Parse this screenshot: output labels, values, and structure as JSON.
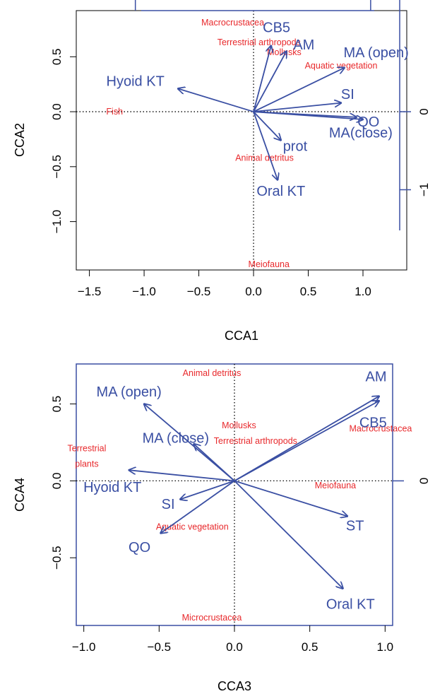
{
  "colors": {
    "arrow": "#3a4fa3",
    "site": "#e8282b",
    "axis": "#000000",
    "frame_secondary": "#3a4fa3"
  },
  "chart_data": [
    {
      "type": "scatter",
      "subtype": "cca-biplot",
      "xlabel": "CCA1",
      "ylabel": "CCA2",
      "xlim": [
        -1.62,
        1.4
      ],
      "ylim": [
        -1.44,
        0.92
      ],
      "x_ticks": [
        -1.5,
        -1.0,
        -0.5,
        0.0,
        0.5,
        1.0
      ],
      "x_tick_labels": [
        "−1.5",
        "−1.0",
        "−0.5",
        "0.0",
        "0.5",
        "1.0"
      ],
      "y_ticks": [
        -1.0,
        -0.5,
        0.0,
        0.5
      ],
      "y_tick_labels": [
        "−1.0",
        "−0.5",
        "0.0",
        "0.5"
      ],
      "right_ticks": [
        0,
        -1
      ],
      "right_tick_labels": [
        "0",
        "−1"
      ],
      "right_tick_scale": 0.71,
      "top_ticks": [
        -1.08,
        1.07
      ],
      "reference_lines": true,
      "vectors": [
        {
          "name": "CB5",
          "x": 0.16,
          "y": 0.6,
          "label": "CB5",
          "lx": 0.21,
          "ly": 0.77,
          "anchor": "middle"
        },
        {
          "name": "AM",
          "x": 0.3,
          "y": 0.55,
          "label": "AM",
          "lx": 0.46,
          "ly": 0.61,
          "anchor": "middle"
        },
        {
          "name": "MA (open)",
          "x": 0.83,
          "y": 0.4,
          "label": "MA (open)",
          "lx": 1.12,
          "ly": 0.54,
          "anchor": "middle"
        },
        {
          "name": "SI",
          "x": 0.8,
          "y": 0.08,
          "label": "SI",
          "lx": 0.86,
          "ly": 0.16,
          "anchor": "middle"
        },
        {
          "name": "QO",
          "x": 0.94,
          "y": -0.05,
          "label": "QO",
          "lx": 1.05,
          "ly": -0.09,
          "anchor": "middle"
        },
        {
          "name": "MA(close)",
          "x": 1.0,
          "y": -0.07,
          "label": "MA(close)",
          "lx": 0.98,
          "ly": -0.19,
          "anchor": "middle"
        },
        {
          "name": "prot",
          "x": 0.25,
          "y": -0.26,
          "label": "prot",
          "lx": 0.38,
          "ly": -0.31,
          "anchor": "middle"
        },
        {
          "name": "Oral KT",
          "x": 0.22,
          "y": -0.62,
          "label": "Oral KT",
          "lx": 0.25,
          "ly": -0.72,
          "anchor": "middle"
        },
        {
          "name": "Hyoid KT",
          "x": -0.69,
          "y": 0.21,
          "label": "Hyoid KT",
          "lx": -1.08,
          "ly": 0.28,
          "anchor": "middle"
        }
      ],
      "sites": [
        {
          "label": "Macrocrustacea",
          "x": -0.19,
          "y": 0.81
        },
        {
          "label": "Terrestrial arthropods",
          "x": 0.05,
          "y": 0.63
        },
        {
          "label": "Mollusks",
          "x": 0.28,
          "y": 0.54
        },
        {
          "label": "Aquatic vegetation",
          "x": 0.8,
          "y": 0.42
        },
        {
          "label": "Fish",
          "x": -1.27,
          "y": 0.0
        },
        {
          "label": "Animal detritus",
          "x": 0.1,
          "y": -0.42
        },
        {
          "label": "Meiofauna",
          "x": 0.14,
          "y": -1.39
        }
      ]
    },
    {
      "type": "scatter",
      "subtype": "cca-biplot",
      "xlabel": "CCA3",
      "ylabel": "CCA4",
      "xlim": [
        -1.05,
        1.05
      ],
      "ylim": [
        -0.94,
        0.76
      ],
      "x_ticks": [
        -1.0,
        -0.5,
        0.0,
        0.5,
        1.0
      ],
      "x_tick_labels": [
        "−1.0",
        "−0.5",
        "0.0",
        "0.5",
        "1.0"
      ],
      "y_ticks": [
        -0.5,
        0.0,
        0.5
      ],
      "y_tick_labels": [
        "−0.5",
        "0.0",
        "0.5"
      ],
      "right_ticks": [
        0
      ],
      "right_tick_labels": [
        "0"
      ],
      "right_tick_scale": 1.0,
      "top_ticks": [],
      "reference_lines": true,
      "vectors": [
        {
          "name": "AM",
          "x": 0.96,
          "y": 0.55,
          "label": "AM",
          "lx": 0.94,
          "ly": 0.68,
          "anchor": "middle"
        },
        {
          "name": "CB5",
          "x": 0.96,
          "y": 0.52,
          "label": "CB5",
          "lx": 0.92,
          "ly": 0.38,
          "anchor": "middle"
        },
        {
          "name": "ST",
          "x": 0.75,
          "y": -0.23,
          "label": "ST",
          "lx": 0.8,
          "ly": -0.29,
          "anchor": "middle"
        },
        {
          "name": "Oral KT",
          "x": 0.72,
          "y": -0.7,
          "label": "Oral KT",
          "lx": 0.77,
          "ly": -0.8,
          "anchor": "middle"
        },
        {
          "name": "MA (open)",
          "x": -0.6,
          "y": 0.5,
          "label": "MA (open)",
          "lx": -0.7,
          "ly": 0.58,
          "anchor": "middle"
        },
        {
          "name": "MA (close)",
          "x": -0.27,
          "y": 0.24,
          "label": "MA (close)",
          "lx": -0.39,
          "ly": 0.28,
          "anchor": "middle"
        },
        {
          "name": "Hyoid KT",
          "x": -0.7,
          "y": 0.07,
          "label": "Hyoid KT",
          "lx": -0.81,
          "ly": -0.04,
          "anchor": "middle"
        },
        {
          "name": "SI",
          "x": -0.36,
          "y": -0.12,
          "label": "SI",
          "lx": -0.44,
          "ly": -0.15,
          "anchor": "middle"
        },
        {
          "name": "QO",
          "x": -0.49,
          "y": -0.34,
          "label": "QO",
          "lx": -0.63,
          "ly": -0.43,
          "anchor": "middle"
        }
      ],
      "sites": [
        {
          "label": "Animal detritus",
          "x": -0.15,
          "y": 0.7
        },
        {
          "label": "Mollusks",
          "x": 0.03,
          "y": 0.36
        },
        {
          "label": "Macrocrustacea",
          "x": 0.97,
          "y": 0.34
        },
        {
          "label": "Terrestrial arthropods",
          "x": 0.14,
          "y": 0.26
        },
        {
          "label": "Terrestrial",
          "x": -0.98,
          "y": 0.21
        },
        {
          "label": "plants",
          "x": -0.98,
          "y": 0.11
        },
        {
          "label": "Meiofauna",
          "x": 0.67,
          "y": -0.03
        },
        {
          "label": "Aquatic vegetation",
          "x": -0.28,
          "y": -0.3
        },
        {
          "label": "Microcrustacea",
          "x": -0.15,
          "y": -0.89
        }
      ]
    }
  ]
}
